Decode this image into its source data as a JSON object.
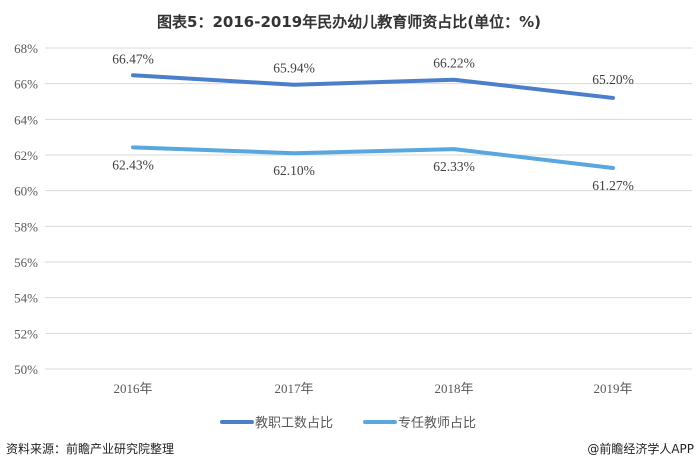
{
  "chart_data": {
    "type": "line",
    "title": "图表5：2016-2019年民办幼儿教育师资占比(单位：%)",
    "categories": [
      "2016年",
      "2017年",
      "2018年",
      "2019年"
    ],
    "series": [
      {
        "name": "教职工数占比",
        "values": [
          66.47,
          65.94,
          66.22,
          65.2
        ],
        "labels": [
          "66.47%",
          "65.94%",
          "66.22%",
          "65.20%"
        ],
        "color": "#4a7fcb"
      },
      {
        "name": "专任教师占比",
        "values": [
          62.43,
          62.1,
          62.33,
          61.27
        ],
        "labels": [
          "62.43%",
          "62.10%",
          "62.33%",
          "61.27%"
        ],
        "color": "#5aa7df"
      }
    ],
    "ylim": [
      50,
      68
    ],
    "yticks": [
      "50%",
      "52%",
      "54%",
      "56%",
      "58%",
      "60%",
      "62%",
      "64%",
      "66%",
      "68%"
    ],
    "grid": true,
    "legend": "bottom"
  },
  "footer": {
    "source": "资料来源：前瞻产业研究院整理",
    "credit": "@前瞻经济学人APP"
  }
}
